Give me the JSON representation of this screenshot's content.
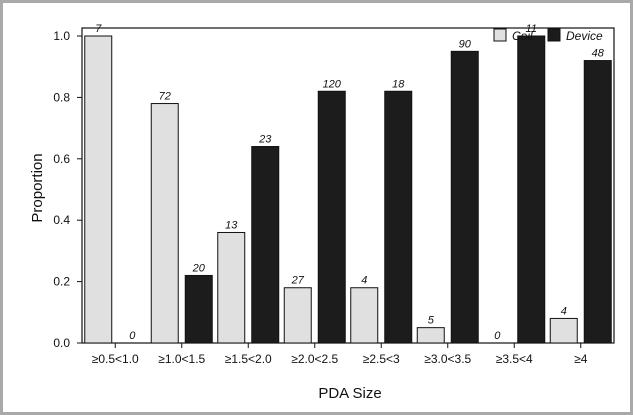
{
  "chart_data": {
    "type": "bar",
    "xlabel": "PDA Size",
    "ylabel": "Proportion",
    "ylim": [
      0,
      1.0
    ],
    "yticks": [
      "0.0",
      "0.2",
      "0.4",
      "0.6",
      "0.8",
      "1.0"
    ],
    "grid": false,
    "legend_position": "top-right",
    "categories": [
      "≥0.5<1.0",
      "≥1.0<1.5",
      "≥1.5<2.0",
      "≥2.0<2.5",
      "≥2.5<3",
      "≥3.0<3.5",
      "≥3.5<4",
      "≥4"
    ],
    "series": [
      {
        "name": "Coil",
        "color": "#e0e0e0",
        "values": [
          1.0,
          0.78,
          0.36,
          0.18,
          0.18,
          0.05,
          0.0,
          0.08
        ],
        "labels": [
          "7",
          "72",
          "13",
          "27",
          "4",
          "5",
          "0",
          "4"
        ]
      },
      {
        "name": "Device",
        "color": "#1c1c1c",
        "values": [
          0.0,
          0.22,
          0.64,
          0.82,
          0.82,
          0.95,
          1.0,
          0.92
        ],
        "labels": [
          "0",
          "20",
          "23",
          "120",
          "18",
          "90",
          "11",
          "48"
        ]
      }
    ]
  }
}
